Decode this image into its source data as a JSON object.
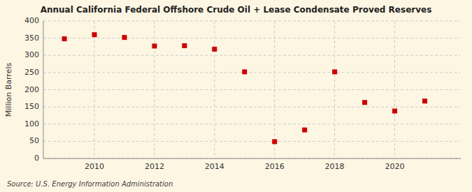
{
  "chart_data": {
    "type": "scatter",
    "title": "Annual California Federal Offshore Crude Oil + Lease Condensate Proved Reserves",
    "y_label": "Million Barrels",
    "annotations": [
      "Source: U.S. Energy Information Administration"
    ],
    "x": [
      2009,
      2010,
      2011,
      2012,
      2013,
      2014,
      2015,
      2016,
      2017,
      2018,
      2019,
      2020,
      2021
    ],
    "values": [
      348,
      360,
      352,
      327,
      328,
      318,
      252,
      49,
      83,
      252,
      163,
      138,
      167
    ],
    "color": "#cc0000",
    "marker": "square",
    "xlim": [
      2008.3,
      2022.2
    ],
    "xticks": [
      2010,
      2012,
      2014,
      2016,
      2018,
      2020
    ],
    "ylim": [
      0,
      400
    ],
    "yticks": [
      0,
      50,
      100,
      150,
      200,
      250,
      300,
      350,
      400
    ],
    "grid": true
  }
}
